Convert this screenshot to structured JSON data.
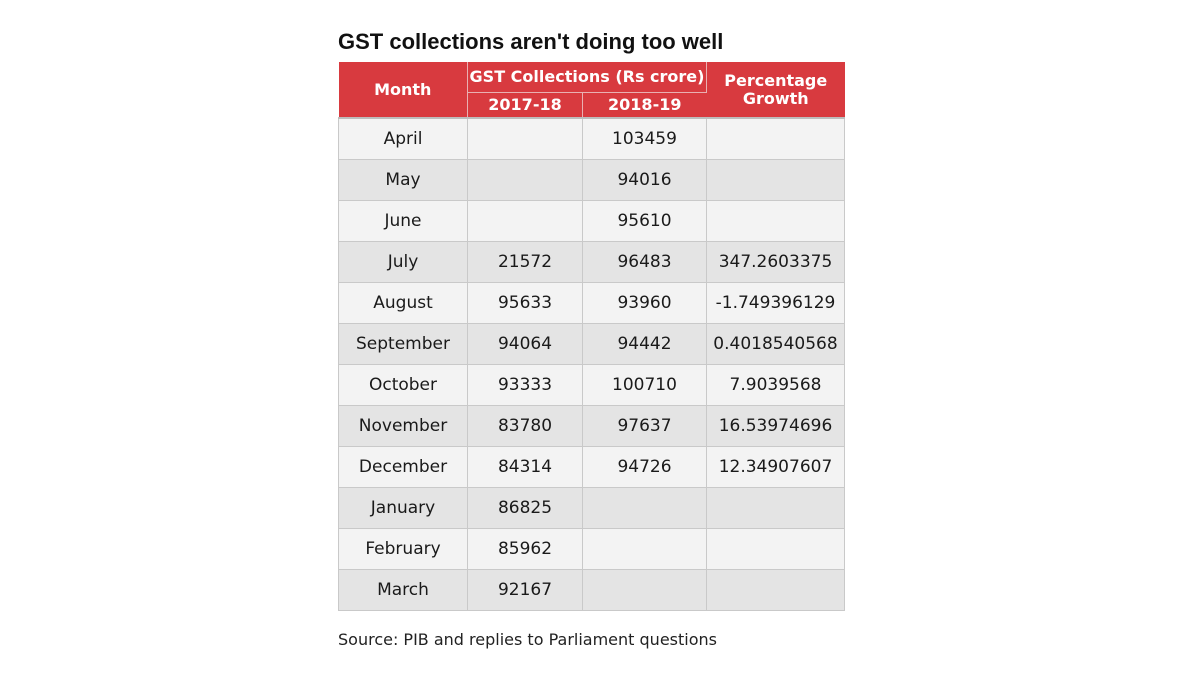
{
  "chart_data": {
    "type": "table",
    "title": "GST collections aren't doing too well",
    "headers": {
      "month": "Month",
      "collections_group": "GST Collections (Rs crore)",
      "fy_2017_18": "2017-18",
      "fy_2018_19": "2018-19",
      "growth": "Percentage Growth"
    },
    "rows": [
      {
        "month": "April",
        "v2017_18": "",
        "v2018_19": "103459",
        "growth": ""
      },
      {
        "month": "May",
        "v2017_18": "",
        "v2018_19": "94016",
        "growth": ""
      },
      {
        "month": "June",
        "v2017_18": "",
        "v2018_19": "95610",
        "growth": ""
      },
      {
        "month": "July",
        "v2017_18": "21572",
        "v2018_19": "96483",
        "growth": "347.2603375"
      },
      {
        "month": "August",
        "v2017_18": "95633",
        "v2018_19": "93960",
        "growth": "-1.749396129"
      },
      {
        "month": "September",
        "v2017_18": "94064",
        "v2018_19": "94442",
        "growth": "0.4018540568"
      },
      {
        "month": "October",
        "v2017_18": "93333",
        "v2018_19": "100710",
        "growth": "7.9039568"
      },
      {
        "month": "November",
        "v2017_18": "83780",
        "v2018_19": "97637",
        "growth": "16.53974696"
      },
      {
        "month": "December",
        "v2017_18": "84314",
        "v2018_19": "94726",
        "growth": "12.34907607"
      },
      {
        "month": "January",
        "v2017_18": "86825",
        "v2018_19": "",
        "growth": ""
      },
      {
        "month": "February",
        "v2017_18": "85962",
        "v2018_19": "",
        "growth": ""
      },
      {
        "month": "March",
        "v2017_18": "92167",
        "v2018_19": "",
        "growth": ""
      }
    ],
    "source": "Source: PIB and replies to Parliament questions"
  },
  "colors": {
    "header_bg": "#d83a3f",
    "header_text": "#ffffff",
    "row_light": "#f3f3f3",
    "row_dark": "#e4e4e4"
  }
}
